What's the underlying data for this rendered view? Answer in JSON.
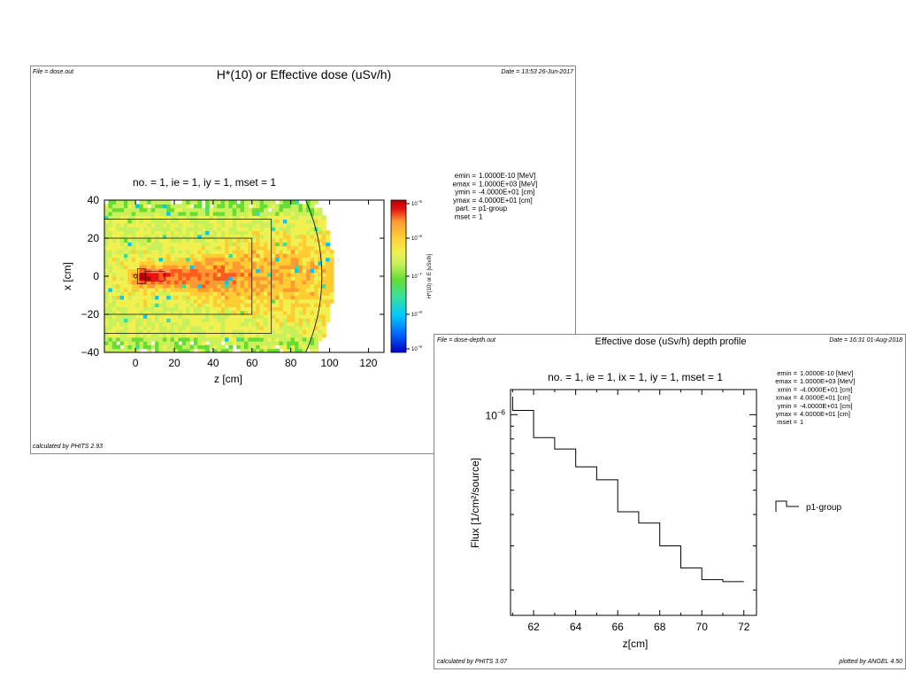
{
  "dose_panel": {
    "file_label": "File = dose.out",
    "title": "H*(10) or Effective dose (uSv/h)",
    "date_label": "Date = 13:53 26-Jun-2017",
    "subtitle": "no. =  1,  ie =  1,  iy =  1,  mset =  1",
    "footer_prefix": "calculated by ",
    "footer_code": "PHITS",
    "footer_version": " 2.93",
    "params": [
      {
        "key": "emin",
        "val": "1.0000E-10 [MeV]"
      },
      {
        "key": "emax",
        "val": "1.0000E+03 [MeV]"
      },
      {
        "key": "ymin",
        "val": "-4.0000E+01 [cm]"
      },
      {
        "key": "ymax",
        "val": "4.0000E+01 [cm]"
      },
      {
        "key": "part.",
        "val": "p1-group"
      },
      {
        "key": "mset",
        "val": "1"
      }
    ]
  },
  "depth_panel": {
    "file_label": "File = dose-depth.out",
    "title": "Effective dose (uSv/h) depth profile",
    "date_label": "Date = 16:31 01-Aug-2018",
    "subtitle": "no. =  1,  ie =  1,  ix =  1,  iy =  1,  mset =  1",
    "footer_prefix": "calculated by ",
    "footer_code": "PHITS",
    "footer_version": " 3.07",
    "plotted_prefix": "plotted by ",
    "plotted_code": "ANGEL",
    "plotted_version": " 4.50",
    "params": [
      {
        "key": "emin",
        "val": "1.0000E-10 [MeV]"
      },
      {
        "key": "emax",
        "val": "1.0000E+03 [MeV]"
      },
      {
        "key": "xmin",
        "val": "-4.0000E+01 [cm]"
      },
      {
        "key": "xmax",
        "val": "4.0000E+01 [cm]"
      },
      {
        "key": "ymin",
        "val": "-4.0000E+01 [cm]"
      },
      {
        "key": "ymax",
        "val": "4.0000E+01 [cm]"
      },
      {
        "key": "mset",
        "val": "1"
      }
    ]
  },
  "chart_data": [
    {
      "type": "heatmap",
      "title": "no. =  1,  ie =  1,  iy =  1,  mset =  1",
      "xlabel": "z [cm]",
      "ylabel": "x [cm]",
      "xlim": [
        -16,
        128
      ],
      "ylim": [
        -40,
        40
      ],
      "x_ticks": [
        0,
        20,
        40,
        60,
        80,
        100,
        120
      ],
      "x_tick_labels": [
        "0",
        "20",
        "40",
        "60",
        "80",
        "100",
        "120"
      ],
      "y_ticks": [
        -40,
        -20,
        0,
        20,
        40
      ],
      "y_tick_labels": [
        "−40",
        "−20",
        "0",
        "20",
        "40"
      ],
      "colorbar": {
        "label": "H*(10) or E [uSv/h]",
        "scale": "log",
        "range": [
          1e-09,
          1e-05
        ],
        "tick_exponents": [
          -5,
          -6,
          -7,
          -8,
          -9
        ],
        "colors": [
          "#0000c8",
          "#0066ff",
          "#00c8ff",
          "#33e0a0",
          "#66dd33",
          "#c8f05a",
          "#f0f050",
          "#ffcc33",
          "#ff9933",
          "#ff5a1e",
          "#e61414",
          "#b40000"
        ]
      },
      "source": {
        "z": 2,
        "x": 0
      },
      "outer_box": {
        "z": [
          -16,
          70
        ],
        "x": [
          -30,
          30
        ]
      },
      "inner_box": {
        "z": [
          -16,
          60
        ],
        "x": [
          -20,
          20
        ]
      },
      "boundary_circle_radius": 100
    },
    {
      "type": "line",
      "subtitle": "no. =  1,  ie =  1,  ix =  1,  iy =  1,  mset =  1",
      "xlabel": "z[cm]",
      "ylabel": "Flux [1/cm²/source]",
      "xlim": [
        60.9,
        72.6
      ],
      "ylog10lim": [
        -6.8,
        -5.9
      ],
      "y_scale": "log",
      "x_ticks": [
        62,
        64,
        66,
        68,
        70,
        72
      ],
      "x_tick_labels": [
        "62",
        "64",
        "66",
        "68",
        "70",
        "72"
      ],
      "y_tick_base": "10",
      "y_tick_exp": "−6",
      "y_tick_value": 1e-06,
      "legend": {
        "position": "right",
        "label": "p1-group"
      },
      "series": [
        {
          "name": "p1-group",
          "style": "step",
          "bin_edges": [
            61,
            62,
            63,
            64,
            65,
            66,
            67,
            68,
            69,
            70,
            71,
            72
          ],
          "values": [
            1.04e-06,
            8.1e-07,
            7.3e-07,
            6.2e-07,
            5.5e-07,
            4.1e-07,
            3.7e-07,
            3e-07,
            2.45e-07,
            2.2e-07,
            2.16e-07
          ],
          "first_bin_top": 1.18e-06
        }
      ]
    }
  ]
}
